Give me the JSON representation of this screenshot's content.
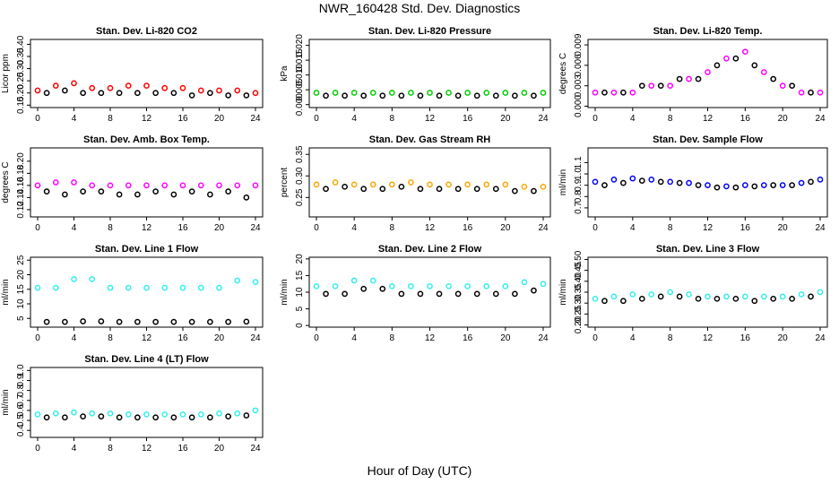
{
  "title": "NWR_160428  Std. Dev. Diagnostics",
  "xlabel": "Hour of Day (UTC)",
  "x_ticks": [
    0,
    4,
    8,
    12,
    16,
    20,
    24
  ],
  "colors": {
    "co2": "#ff0000",
    "pressure": "#00cc00",
    "temp": "#ff00ff",
    "box_temp": "#ff00ff",
    "rh": "#ffa500",
    "flow": "#0000ff",
    "line": "#33eeee",
    "mean": "#000000"
  },
  "chart_data": [
    {
      "type": "scatter",
      "title": "Stan. Dev. Li-820 CO2",
      "ylabel": "Licor ppm",
      "xlim": [
        0,
        24
      ],
      "ylim": [
        0.14,
        0.42
      ],
      "yticks": [
        "0.15",
        "0.20",
        "0.25",
        "0.30",
        "0.35",
        "0.40"
      ],
      "color": "#ff0000",
      "series": [
        {
          "name": "",
          "x": [
            0,
            2,
            4,
            6,
            8,
            10,
            12,
            14,
            16,
            18,
            20,
            22,
            24
          ],
          "y": [
            0.21,
            0.23,
            0.24,
            0.22,
            0.22,
            0.23,
            0.23,
            0.22,
            0.22,
            0.21,
            0.21,
            0.21,
            0.2
          ]
        },
        {
          "name": "",
          "x": [
            1,
            3,
            5,
            7,
            9,
            11,
            13,
            15,
            17,
            19,
            21,
            23
          ],
          "y": [
            0.2,
            0.21,
            0.2,
            0.2,
            0.2,
            0.2,
            0.2,
            0.2,
            0.19,
            0.2,
            0.19,
            0.19
          ]
        }
      ]
    },
    {
      "type": "scatter",
      "title": "Stan. Dev. Li-820 Pressure",
      "ylabel": "kPa",
      "xlim": [
        0,
        24
      ],
      "ylim": [
        -0.001,
        0.022
      ],
      "yticks": [
        "0.000",
        "0.005",
        "0.010",
        "0.015",
        "0.020"
      ],
      "color": "#00cc00",
      "series": [
        {
          "name": "",
          "x": [
            0,
            2,
            4,
            6,
            8,
            10,
            12,
            14,
            16,
            18,
            20,
            22,
            24
          ],
          "y": [
            0.004,
            0.004,
            0.004,
            0.004,
            0.004,
            0.004,
            0.004,
            0.004,
            0.004,
            0.004,
            0.004,
            0.004,
            0.004
          ]
        },
        {
          "name": "",
          "x": [
            1,
            3,
            5,
            7,
            9,
            11,
            13,
            15,
            17,
            19,
            21,
            23
          ],
          "y": [
            0.003,
            0.003,
            0.003,
            0.003,
            0.003,
            0.003,
            0.003,
            0.003,
            0.003,
            0.003,
            0.003,
            0.003
          ]
        }
      ]
    },
    {
      "type": "scatter",
      "title": "Stan. Dev. Li-820 Temp.",
      "ylabel": "degrees C",
      "xlim": [
        0,
        24
      ],
      "ylim": [
        -0.0002,
        0.0098
      ],
      "yticks": [
        "0.000",
        "0.003",
        "0.006",
        "0.009"
      ],
      "color": "#ff00ff",
      "series": [
        {
          "name": "",
          "x": [
            0,
            2,
            4,
            6,
            8,
            10,
            12,
            14,
            16,
            18,
            20,
            22,
            24
          ],
          "y": [
            0.002,
            0.002,
            0.002,
            0.003,
            0.003,
            0.004,
            0.005,
            0.007,
            0.008,
            0.005,
            0.003,
            0.002,
            0.002
          ]
        },
        {
          "name": "",
          "x": [
            1,
            3,
            5,
            7,
            9,
            11,
            13,
            15,
            17,
            19,
            21,
            23
          ],
          "y": [
            0.002,
            0.002,
            0.003,
            0.003,
            0.004,
            0.004,
            0.006,
            0.007,
            0.006,
            0.004,
            0.003,
            0.002
          ]
        }
      ]
    },
    {
      "type": "scatter",
      "title": "Stan. Dev. Amb. Box Temp.",
      "ylabel": "degrees C",
      "xlim": [
        0,
        24
      ],
      "ylim": [
        0.108,
        0.222
      ],
      "yticks": [
        "0.12",
        "0.14",
        "0.16",
        "0.18",
        "0.20"
      ],
      "color": "#ff00ff",
      "series": [
        {
          "name": "",
          "x": [
            0,
            2,
            4,
            6,
            8,
            10,
            12,
            14,
            16,
            18,
            20,
            22,
            24
          ],
          "y": [
            0.16,
            0.165,
            0.165,
            0.16,
            0.16,
            0.16,
            0.16,
            0.16,
            0.16,
            0.16,
            0.16,
            0.16,
            0.16
          ]
        },
        {
          "name": "",
          "x": [
            1,
            3,
            5,
            7,
            9,
            11,
            13,
            15,
            17,
            19,
            21,
            23
          ],
          "y": [
            0.15,
            0.145,
            0.15,
            0.15,
            0.145,
            0.145,
            0.15,
            0.145,
            0.15,
            0.145,
            0.15,
            0.14
          ]
        }
      ]
    },
    {
      "type": "scatter",
      "title": "Stan. Dev. Gas Stream RH",
      "ylabel": "percent",
      "xlim": [
        0,
        24
      ],
      "ylim": [
        0.205,
        0.365
      ],
      "yticks": [
        "0.25",
        "0.30",
        "0.35"
      ],
      "color": "#ffa500",
      "series": [
        {
          "name": "",
          "x": [
            0,
            2,
            4,
            6,
            8,
            10,
            12,
            14,
            16,
            18,
            20,
            22,
            24
          ],
          "y": [
            0.28,
            0.285,
            0.28,
            0.28,
            0.28,
            0.285,
            0.28,
            0.28,
            0.28,
            0.28,
            0.28,
            0.275,
            0.275
          ]
        },
        {
          "name": "",
          "x": [
            1,
            3,
            5,
            7,
            9,
            11,
            13,
            15,
            17,
            19,
            21,
            23
          ],
          "y": [
            0.27,
            0.275,
            0.27,
            0.27,
            0.275,
            0.27,
            0.27,
            0.27,
            0.27,
            0.27,
            0.265,
            0.265
          ]
        }
      ]
    },
    {
      "type": "scatter",
      "title": "Stan. Dev. Sample Flow",
      "ylabel": "ml/min",
      "xlim": [
        0,
        24
      ],
      "ylim": [
        0.62,
        1.23
      ],
      "yticks": [
        "0.7",
        "0.8",
        "0.9",
        "1.0",
        "1.1"
      ],
      "color": "#0000ff",
      "series": [
        {
          "name": "",
          "x": [
            0,
            2,
            4,
            6,
            8,
            10,
            12,
            14,
            16,
            18,
            20,
            22,
            24
          ],
          "y": [
            0.93,
            0.95,
            0.96,
            0.95,
            0.93,
            0.92,
            0.9,
            0.89,
            0.9,
            0.9,
            0.9,
            0.92,
            0.95
          ]
        },
        {
          "name": "",
          "x": [
            1,
            3,
            5,
            7,
            9,
            11,
            13,
            15,
            17,
            19,
            21,
            23
          ],
          "y": [
            0.9,
            0.92,
            0.94,
            0.93,
            0.92,
            0.9,
            0.88,
            0.88,
            0.89,
            0.9,
            0.9,
            0.93
          ]
        }
      ]
    },
    {
      "type": "scatter",
      "title": "Stan. Dev. Line 1 Flow",
      "ylabel": "ml/min",
      "xlim": [
        0,
        24
      ],
      "ylim": [
        2,
        26
      ],
      "yticks": [
        "5",
        "10",
        "15",
        "20",
        "25"
      ],
      "color": "#33eeee",
      "series": [
        {
          "name": "",
          "x": [
            0,
            2,
            4,
            6,
            8,
            10,
            12,
            14,
            16,
            18,
            20,
            22,
            24
          ],
          "y": [
            15.5,
            15.5,
            18.5,
            18.5,
            15.5,
            15.5,
            15.5,
            15.5,
            15.5,
            15.5,
            15.5,
            18,
            17.5
          ]
        },
        {
          "name": "",
          "x": [
            1,
            3,
            5,
            7,
            9,
            11,
            13,
            15,
            17,
            19,
            21,
            23
          ],
          "y": [
            3.8,
            3.8,
            4,
            4,
            3.8,
            3.8,
            3.8,
            3.8,
            3.8,
            3.8,
            3.8,
            3.9
          ]
        }
      ]
    },
    {
      "type": "scatter",
      "title": "Stan. Dev. Line 2 Flow",
      "ylabel": "ml/min",
      "xlim": [
        0,
        24
      ],
      "ylim": [
        -0.5,
        20.5
      ],
      "yticks": [
        "0",
        "5",
        "10",
        "15",
        "20"
      ],
      "color": "#33eeee",
      "series": [
        {
          "name": "",
          "x": [
            0,
            2,
            4,
            6,
            8,
            10,
            12,
            14,
            16,
            18,
            20,
            22,
            24
          ],
          "y": [
            11.8,
            11.8,
            13.5,
            13.5,
            11.8,
            11.8,
            11.8,
            11.8,
            11.8,
            11.8,
            11.8,
            13,
            12.5
          ]
        },
        {
          "name": "",
          "x": [
            1,
            3,
            5,
            7,
            9,
            11,
            13,
            15,
            17,
            19,
            21,
            23
          ],
          "y": [
            9.5,
            9.5,
            11,
            11,
            9.5,
            9.5,
            9.5,
            9.5,
            9.5,
            9.5,
            9.5,
            10.5
          ]
        }
      ]
    },
    {
      "type": "scatter",
      "title": "Stan. Dev. Line 3 Flow",
      "ylabel": "ml/min",
      "xlim": [
        0,
        24
      ],
      "ylim": [
        0.19,
        0.51
      ],
      "yticks": [
        "0.20",
        "0.25",
        "0.30",
        "0.35",
        "0.40",
        "0.45",
        "0.50"
      ],
      "color": "#33eeee",
      "series": [
        {
          "name": "",
          "x": [
            0,
            2,
            4,
            6,
            8,
            10,
            12,
            14,
            16,
            18,
            20,
            22,
            24
          ],
          "y": [
            0.32,
            0.33,
            0.34,
            0.34,
            0.35,
            0.34,
            0.33,
            0.33,
            0.33,
            0.33,
            0.33,
            0.34,
            0.35
          ]
        },
        {
          "name": "",
          "x": [
            1,
            3,
            5,
            7,
            9,
            11,
            13,
            15,
            17,
            19,
            21,
            23
          ],
          "y": [
            0.31,
            0.31,
            0.32,
            0.33,
            0.33,
            0.32,
            0.32,
            0.32,
            0.31,
            0.32,
            0.32,
            0.33
          ]
        }
      ]
    },
    {
      "type": "scatter",
      "title": "Stan. Dev. Line 4 (LT) Flow",
      "ylabel": "ml/min",
      "xlim": [
        0,
        24
      ],
      "ylim": [
        0.33,
        1.03
      ],
      "yticks": [
        "0.4",
        "0.5",
        "0.6",
        "0.7",
        "0.8",
        "0.9",
        "1.0"
      ],
      "color": "#33eeee",
      "series": [
        {
          "name": "",
          "x": [
            0,
            2,
            4,
            6,
            8,
            10,
            12,
            14,
            16,
            18,
            20,
            22,
            24
          ],
          "y": [
            0.56,
            0.57,
            0.58,
            0.57,
            0.57,
            0.56,
            0.56,
            0.56,
            0.56,
            0.56,
            0.57,
            0.57,
            0.6
          ]
        },
        {
          "name": "",
          "x": [
            1,
            3,
            5,
            7,
            9,
            11,
            13,
            15,
            17,
            19,
            21,
            23
          ],
          "y": [
            0.53,
            0.53,
            0.54,
            0.54,
            0.53,
            0.53,
            0.53,
            0.53,
            0.53,
            0.53,
            0.54,
            0.55
          ]
        }
      ]
    }
  ]
}
